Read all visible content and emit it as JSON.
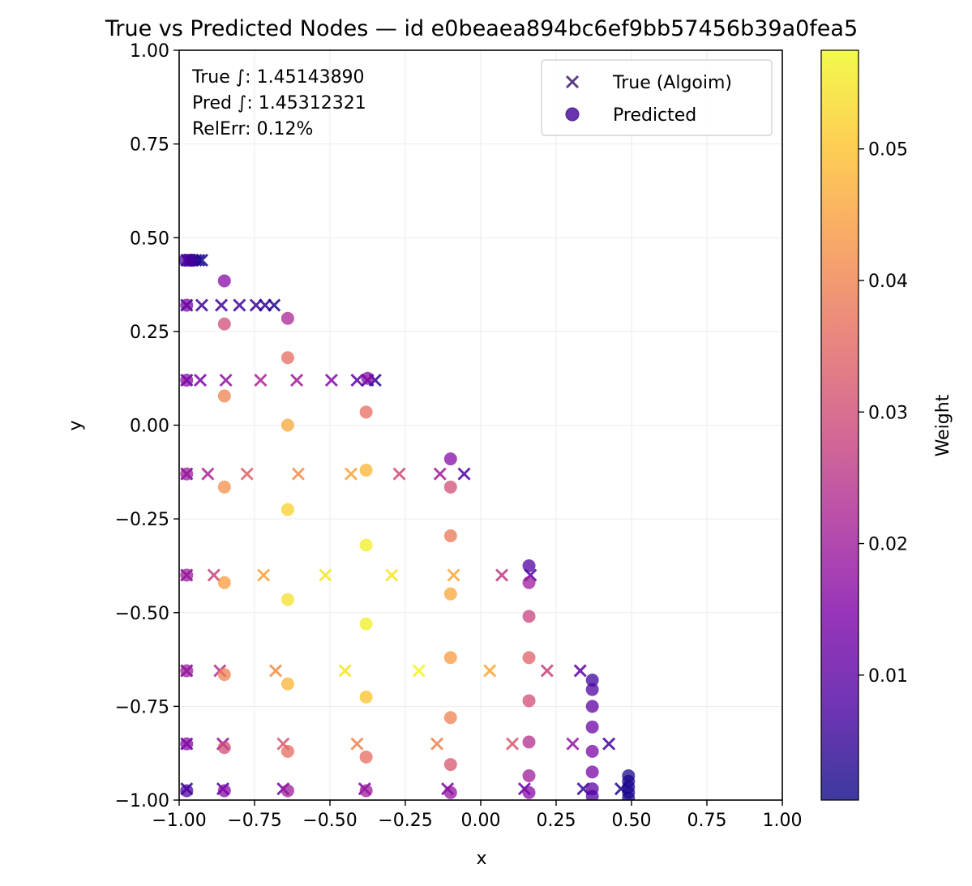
{
  "chart_data": {
    "type": "scatter",
    "title": "True vs Predicted Nodes — id e0beaea894bc6ef9bb57456b39a0fea5",
    "xlabel": "x",
    "ylabel": "y",
    "xlim": [
      -1.0,
      1.0
    ],
    "ylim": [
      -1.0,
      1.0
    ],
    "xticks": [
      "−1.00",
      "−0.75",
      "−0.50",
      "−0.25",
      "0.00",
      "0.25",
      "0.50",
      "0.75",
      "1.00"
    ],
    "yticks": [
      "−1.00",
      "−0.75",
      "−0.50",
      "−0.25",
      "0.00",
      "0.25",
      "0.50",
      "0.75",
      "1.00"
    ],
    "grid": true,
    "legend": {
      "placement": "top-right",
      "entries": [
        "True (Algoim)",
        "Predicted"
      ]
    },
    "annotation": [
      "True ∫: 1.45143890",
      "Pred ∫: 1.45312321",
      "RelErr: 0.12%"
    ],
    "colorbar": {
      "label": "Weight",
      "colormap": "plasma",
      "range": [
        0.0005,
        0.0575
      ],
      "ticks": [
        "0.01",
        "0.02",
        "0.03",
        "0.04",
        "0.05"
      ],
      "tick_values": [
        0.01,
        0.02,
        0.03,
        0.04,
        0.05
      ]
    },
    "series": [
      {
        "name": "True (Algoim)",
        "marker": "x",
        "points": [
          [
            -0.975,
            0.44,
            0.001
          ],
          [
            -0.965,
            0.44,
            0.002
          ],
          [
            -0.955,
            0.44,
            0.002
          ],
          [
            -0.945,
            0.44,
            0.002
          ],
          [
            -0.935,
            0.44,
            0.002
          ],
          [
            -0.925,
            0.44,
            0.001
          ],
          [
            -0.975,
            0.32,
            0.003
          ],
          [
            -0.925,
            0.32,
            0.006
          ],
          [
            -0.86,
            0.32,
            0.006
          ],
          [
            -0.8,
            0.32,
            0.006
          ],
          [
            -0.745,
            0.32,
            0.006
          ],
          [
            -0.715,
            0.32,
            0.005
          ],
          [
            -0.685,
            0.32,
            0.003
          ],
          [
            -0.975,
            0.12,
            0.008
          ],
          [
            -0.93,
            0.12,
            0.014
          ],
          [
            -0.845,
            0.12,
            0.018
          ],
          [
            -0.73,
            0.12,
            0.022
          ],
          [
            -0.61,
            0.12,
            0.02
          ],
          [
            -0.495,
            0.12,
            0.016
          ],
          [
            -0.41,
            0.12,
            0.01
          ],
          [
            -0.375,
            0.12,
            0.006
          ],
          [
            -0.35,
            0.12,
            0.004
          ],
          [
            -0.975,
            -0.13,
            0.012
          ],
          [
            -0.905,
            -0.13,
            0.022
          ],
          [
            -0.775,
            -0.13,
            0.034
          ],
          [
            -0.605,
            -0.13,
            0.042
          ],
          [
            -0.43,
            -0.13,
            0.045
          ],
          [
            -0.27,
            -0.13,
            0.03
          ],
          [
            -0.135,
            -0.13,
            0.02
          ],
          [
            -0.055,
            -0.13,
            0.008
          ],
          [
            -0.975,
            -0.4,
            0.014
          ],
          [
            -0.885,
            -0.4,
            0.028
          ],
          [
            -0.72,
            -0.4,
            0.045
          ],
          [
            -0.515,
            -0.4,
            0.055
          ],
          [
            -0.295,
            -0.4,
            0.055
          ],
          [
            -0.09,
            -0.4,
            0.046
          ],
          [
            0.07,
            -0.4,
            0.026
          ],
          [
            0.165,
            -0.4,
            0.008
          ],
          [
            -0.975,
            -0.655,
            0.012
          ],
          [
            -0.865,
            -0.655,
            0.024
          ],
          [
            -0.68,
            -0.655,
            0.042
          ],
          [
            -0.45,
            -0.655,
            0.055
          ],
          [
            -0.205,
            -0.655,
            0.057
          ],
          [
            0.03,
            -0.655,
            0.046
          ],
          [
            0.22,
            -0.655,
            0.028
          ],
          [
            0.33,
            -0.655,
            0.01
          ],
          [
            -0.975,
            -0.85,
            0.01
          ],
          [
            -0.855,
            -0.85,
            0.018
          ],
          [
            -0.655,
            -0.85,
            0.032
          ],
          [
            -0.41,
            -0.85,
            0.04
          ],
          [
            -0.145,
            -0.85,
            0.04
          ],
          [
            0.105,
            -0.85,
            0.032
          ],
          [
            0.305,
            -0.85,
            0.018
          ],
          [
            0.425,
            -0.85,
            0.006
          ],
          [
            -0.975,
            -0.97,
            0.004
          ],
          [
            -0.855,
            -0.97,
            0.008
          ],
          [
            -0.655,
            -0.97,
            0.012
          ],
          [
            -0.385,
            -0.97,
            0.014
          ],
          [
            -0.11,
            -0.97,
            0.014
          ],
          [
            0.145,
            -0.97,
            0.01
          ],
          [
            0.34,
            -0.97,
            0.005
          ],
          [
            0.465,
            -0.97,
            0.002
          ]
        ]
      },
      {
        "name": "Predicted",
        "marker": "o",
        "points": [
          [
            -0.98,
            0.44,
            0.008
          ],
          [
            -0.965,
            0.44,
            0.008
          ],
          [
            -0.955,
            0.44,
            0.006
          ],
          [
            -0.85,
            0.385,
            0.016
          ],
          [
            -0.975,
            0.32,
            0.014
          ],
          [
            -0.85,
            0.27,
            0.03
          ],
          [
            -0.64,
            0.285,
            0.022
          ],
          [
            -0.64,
            0.18,
            0.036
          ],
          [
            -0.975,
            0.12,
            0.016
          ],
          [
            -0.85,
            0.078,
            0.04
          ],
          [
            -0.64,
            0.0,
            0.046
          ],
          [
            -0.375,
            0.125,
            0.016
          ],
          [
            -0.38,
            0.035,
            0.036
          ],
          [
            -0.975,
            -0.13,
            0.02
          ],
          [
            -0.85,
            -0.165,
            0.042
          ],
          [
            -0.64,
            -0.225,
            0.052
          ],
          [
            -0.38,
            -0.12,
            0.048
          ],
          [
            -0.1,
            -0.09,
            0.016
          ],
          [
            -0.1,
            -0.165,
            0.03
          ],
          [
            -0.975,
            -0.4,
            0.02
          ],
          [
            -0.85,
            -0.42,
            0.044
          ],
          [
            -0.64,
            -0.465,
            0.054
          ],
          [
            -0.38,
            -0.32,
            0.056
          ],
          [
            -0.1,
            -0.295,
            0.038
          ],
          [
            -0.1,
            -0.45,
            0.046
          ],
          [
            0.16,
            -0.375,
            0.008
          ],
          [
            0.16,
            -0.42,
            0.02
          ],
          [
            0.16,
            -0.51,
            0.028
          ],
          [
            -0.975,
            -0.655,
            0.02
          ],
          [
            -0.85,
            -0.665,
            0.04
          ],
          [
            -0.64,
            -0.69,
            0.048
          ],
          [
            -0.38,
            -0.53,
            0.056
          ],
          [
            -0.38,
            -0.725,
            0.05
          ],
          [
            -0.1,
            -0.62,
            0.044
          ],
          [
            -0.1,
            -0.78,
            0.04
          ],
          [
            0.16,
            -0.62,
            0.034
          ],
          [
            0.16,
            -0.735,
            0.03
          ],
          [
            -0.975,
            -0.85,
            0.016
          ],
          [
            -0.85,
            -0.86,
            0.03
          ],
          [
            -0.64,
            -0.87,
            0.036
          ],
          [
            -0.38,
            -0.885,
            0.036
          ],
          [
            -0.1,
            -0.905,
            0.032
          ],
          [
            0.16,
            -0.845,
            0.024
          ],
          [
            0.16,
            -0.935,
            0.02
          ],
          [
            -0.975,
            -0.975,
            0.008
          ],
          [
            -0.85,
            -0.975,
            0.016
          ],
          [
            -0.64,
            -0.975,
            0.02
          ],
          [
            -0.38,
            -0.975,
            0.02
          ],
          [
            -0.1,
            -0.98,
            0.018
          ],
          [
            0.16,
            -0.98,
            0.016
          ],
          [
            0.37,
            -0.68,
            0.006
          ],
          [
            0.37,
            -0.705,
            0.008
          ],
          [
            0.37,
            -0.75,
            0.01
          ],
          [
            0.37,
            -0.805,
            0.012
          ],
          [
            0.37,
            -0.87,
            0.014
          ],
          [
            0.37,
            -0.925,
            0.014
          ],
          [
            0.37,
            -0.97,
            0.01
          ],
          [
            0.37,
            -0.99,
            0.008
          ],
          [
            0.49,
            -0.935,
            0.002
          ],
          [
            0.49,
            -0.95,
            0.002
          ],
          [
            0.49,
            -0.965,
            0.002
          ],
          [
            0.49,
            -0.98,
            0.002
          ],
          [
            0.49,
            -0.995,
            0.002
          ]
        ]
      }
    ]
  }
}
